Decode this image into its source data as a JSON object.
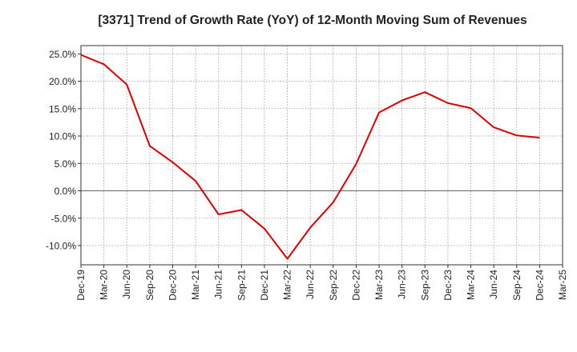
{
  "chart_data": {
    "type": "line",
    "title": "[3371]  Trend of Growth Rate (YoY) of 12-Month Moving Sum of Revenues",
    "xlabel": "",
    "ylabel": "",
    "x_tick_labels": [
      "Dec-19",
      "Mar-20",
      "Jun-20",
      "Sep-20",
      "Dec-20",
      "Mar-21",
      "Jun-21",
      "Sep-21",
      "Dec-21",
      "Mar-22",
      "Jun-22",
      "Sep-22",
      "Dec-22",
      "Mar-23",
      "Jun-23",
      "Sep-23",
      "Dec-23",
      "Mar-24",
      "Jun-24",
      "Sep-24",
      "Dec-24",
      "Mar-25"
    ],
    "y_ticks": [
      25.0,
      20.0,
      15.0,
      10.0,
      5.0,
      0.0,
      -5.0,
      -10.0
    ],
    "y_tick_labels": [
      "25.0%",
      "20.0%",
      "15.0%",
      "10.0%",
      "5.0%",
      "0.0%",
      "-5.0%",
      "-10.0%"
    ],
    "ylim": [
      -13.5,
      26.5
    ],
    "grid": true,
    "line_color": "#e00000",
    "series": [
      {
        "x": [
          "Dec-19",
          "Mar-20",
          "Jun-20",
          "Sep-20",
          "Dec-20",
          "Mar-21",
          "Jun-21",
          "Sep-21",
          "Dec-21",
          "Mar-22",
          "Jun-22",
          "Sep-22",
          "Dec-22",
          "Mar-23",
          "Jun-23",
          "Sep-23",
          "Dec-23",
          "Mar-24",
          "Jun-24",
          "Sep-24",
          "Dec-24"
        ],
        "values": [
          24.8,
          23.1,
          19.4,
          8.2,
          5.2,
          1.8,
          -4.3,
          -3.5,
          -6.9,
          -12.4,
          -6.7,
          -2.1,
          4.9,
          14.3,
          16.5,
          18.0,
          16.0,
          15.1,
          11.6,
          10.1,
          9.7
        ]
      }
    ]
  }
}
